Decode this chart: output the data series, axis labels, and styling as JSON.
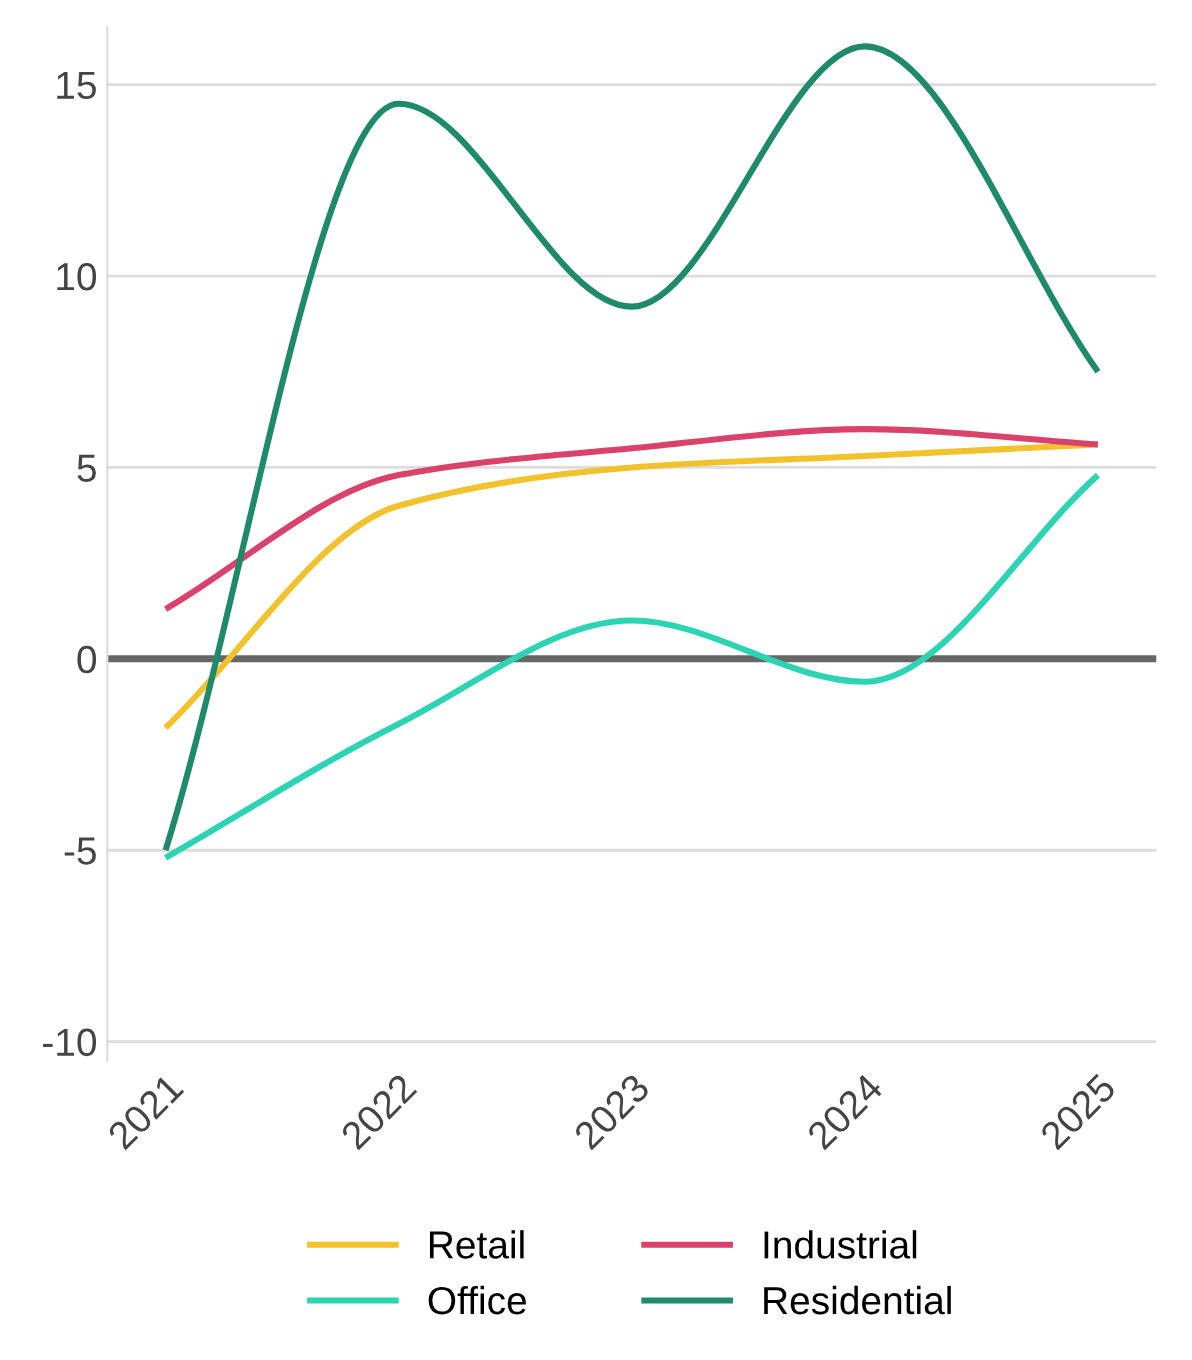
{
  "chart_data": {
    "type": "line",
    "categories": [
      "2021",
      "2022",
      "2023",
      "2024",
      "2025"
    ],
    "series": [
      {
        "name": "Retail",
        "color": "#f2c12e",
        "values": [
          -1.8,
          4.0,
          5.0,
          5.3,
          5.6
        ]
      },
      {
        "name": "Office",
        "color": "#2dd4b4",
        "values": [
          -5.2,
          -1.7,
          1.0,
          -0.6,
          4.8
        ]
      },
      {
        "name": "Industrial",
        "color": "#d9436b",
        "values": [
          1.3,
          4.8,
          5.5,
          6.0,
          5.6
        ]
      },
      {
        "name": "Residential",
        "color": "#1f8a6a",
        "values": [
          -5.0,
          14.5,
          9.2,
          16.0,
          7.5
        ]
      }
    ],
    "ylim": [
      -10.5,
      16.5
    ],
    "yticks": [
      -10,
      -5,
      0,
      5,
      10,
      15
    ],
    "grid": "y",
    "legend": "bottom",
    "marker": "none",
    "line_style": "solid",
    "ref_lines": [
      {
        "axis": "y",
        "value": 0,
        "color": "#666666"
      }
    ]
  }
}
